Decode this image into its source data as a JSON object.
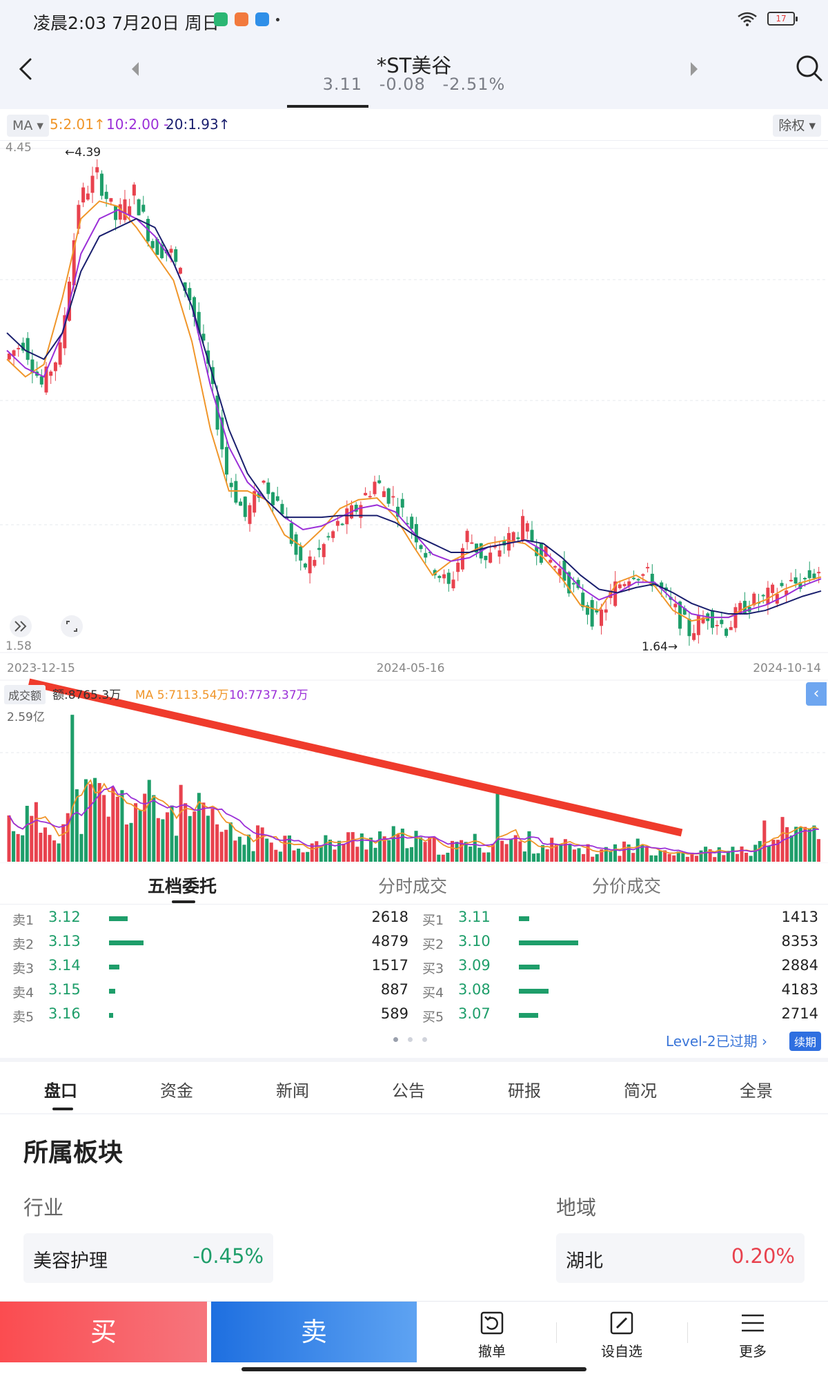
{
  "status_bar": {
    "time": "凌晨2:03 7月20日 周日",
    "battery": "17"
  },
  "header": {
    "stock_name": "*ST美谷",
    "price": "3.11",
    "change": "-0.08",
    "change_pct": "-2.51%"
  },
  "ma_legend": {
    "select_label": "MA",
    "ma5": "5:2.01↑",
    "ma10": "10:2.00 -",
    "ma20": "20:1.93↑",
    "fq_label": "除权"
  },
  "colors": {
    "up": "#e8424e",
    "down": "#1e9e6a",
    "ma5": "#f0962a",
    "ma10": "#9b2fd8",
    "ma20": "#1a1f6e",
    "annotation": "#ef3b2c"
  },
  "chart_data": {
    "type": "candlestick",
    "price_axis": {
      "max_label": "4.45",
      "min_label": "1.58",
      "ylim": [
        1.58,
        4.45
      ]
    },
    "x_labels": [
      "2023-12-15",
      "2024-05-16",
      "2024-10-14"
    ],
    "annotations": {
      "high": "←4.39",
      "low": "1.64→"
    },
    "close_series": [
      3.25,
      3.35,
      3.1,
      3.3,
      4.15,
      4.3,
      4.05,
      4.2,
      3.9,
      3.85,
      3.6,
      3.2,
      2.6,
      2.35,
      2.55,
      2.4,
      2.05,
      2.15,
      2.3,
      2.4,
      2.55,
      2.45,
      2.3,
      2.1,
      1.95,
      2.25,
      2.1,
      2.2,
      2.3,
      2.15,
      2.05,
      1.9,
      1.75,
      1.95,
      2.05,
      2.0,
      1.85,
      1.7,
      1.8,
      1.72,
      1.85,
      1.88,
      1.95,
      1.98,
      2.05
    ],
    "ma_series": [
      {
        "name": "MA5",
        "values": [
          3.25,
          3.15,
          3.22,
          3.6,
          4.05,
          4.15,
          4.12,
          4.0,
          3.85,
          3.7,
          3.35,
          2.85,
          2.5,
          2.5,
          2.45,
          2.25,
          2.18,
          2.28,
          2.4,
          2.45,
          2.46,
          2.35,
          2.18,
          2.02,
          2.1,
          2.15,
          2.2,
          2.22,
          2.2,
          2.12,
          2.0,
          1.85,
          1.82,
          1.98,
          2.02,
          1.96,
          1.82,
          1.76,
          1.78,
          1.78,
          1.84,
          1.88,
          1.94,
          1.98,
          2.01
        ]
      },
      {
        "name": "MA10",
        "values": [
          3.3,
          3.2,
          3.15,
          3.4,
          3.85,
          4.05,
          4.1,
          4.05,
          3.95,
          3.8,
          3.55,
          3.1,
          2.75,
          2.55,
          2.45,
          2.35,
          2.28,
          2.3,
          2.35,
          2.4,
          2.42,
          2.38,
          2.26,
          2.14,
          2.1,
          2.12,
          2.18,
          2.2,
          2.22,
          2.16,
          2.06,
          1.95,
          1.88,
          1.92,
          1.98,
          1.98,
          1.88,
          1.8,
          1.78,
          1.78,
          1.82,
          1.85,
          1.9,
          1.96,
          2.0
        ]
      },
      {
        "name": "MA20",
        "values": [
          3.4,
          3.3,
          3.25,
          3.4,
          3.75,
          3.95,
          4.0,
          4.05,
          4.0,
          3.8,
          3.55,
          3.2,
          2.85,
          2.6,
          2.45,
          2.35,
          2.35,
          2.35,
          2.36,
          2.36,
          2.36,
          2.32,
          2.25,
          2.2,
          2.15,
          2.15,
          2.18,
          2.2,
          2.22,
          2.2,
          2.12,
          2.02,
          1.94,
          1.92,
          1.95,
          1.97,
          1.92,
          1.86,
          1.82,
          1.8,
          1.8,
          1.82,
          1.86,
          1.9,
          1.93
        ]
      }
    ],
    "volume": {
      "badge": "成交额",
      "amount": "额:8765.3万",
      "ma5": "MA 5:7113.54万",
      "ma10": "10:7737.37万",
      "max_label": "2.59亿",
      "ylim": [
        0,
        2.59
      ]
    }
  },
  "order_book": {
    "tabs": [
      "五档委托",
      "分时成交",
      "分价成交"
    ],
    "sell": [
      {
        "label": "卖1",
        "price": "3.12",
        "qty": "2618",
        "share": 0.31
      },
      {
        "label": "卖2",
        "price": "3.13",
        "qty": "4879",
        "share": 0.58
      },
      {
        "label": "卖3",
        "price": "3.14",
        "qty": "1517",
        "share": 0.18
      },
      {
        "label": "卖4",
        "price": "3.15",
        "qty": "887",
        "share": 0.1
      },
      {
        "label": "卖5",
        "price": "3.16",
        "qty": "589",
        "share": 0.07
      }
    ],
    "buy": [
      {
        "label": "买1",
        "price": "3.11",
        "qty": "1413",
        "share": 0.17
      },
      {
        "label": "买2",
        "price": "3.10",
        "qty": "8353",
        "share": 1.0
      },
      {
        "label": "买3",
        "price": "3.09",
        "qty": "2884",
        "share": 0.35
      },
      {
        "label": "买4",
        "price": "3.08",
        "qty": "4183",
        "share": 0.5
      },
      {
        "label": "买5",
        "price": "3.07",
        "qty": "2714",
        "share": 0.33
      }
    ],
    "level2_text": "Level-2已过期 ›",
    "renew_label": "续期"
  },
  "sub_tabs": [
    "盘口",
    "资金",
    "新闻",
    "公告",
    "研报",
    "简况",
    "全景"
  ],
  "sectors": {
    "title": "所属板块",
    "industry_label": "行业",
    "region_label": "地域",
    "industry": {
      "name": "美容护理",
      "change": "-0.45%"
    },
    "region": {
      "name": "湖北",
      "change": "0.20%"
    }
  },
  "bottom_bar": {
    "buy": "买",
    "sell": "卖",
    "cancel": "撤单",
    "watchlist": "设自选",
    "more": "更多"
  }
}
